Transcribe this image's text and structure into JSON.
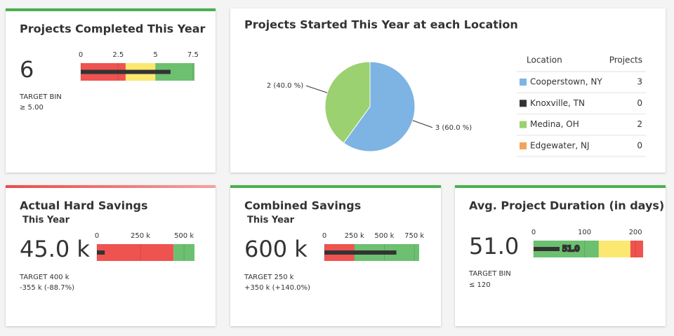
{
  "kpis": [
    {
      "title": "Projects Completed This Year",
      "value": 6,
      "target_label": "TARGET BIN",
      "target_text": "≥ 5.00",
      "target_color": "#3d9a3d",
      "accent": "#4caf50",
      "bullet": {
        "xlim": [
          0,
          7.6
        ],
        "xticks": [
          0,
          2.5,
          5,
          7.5
        ],
        "bands": [
          {
            "from": 0,
            "to": 3,
            "color": "#ef5350"
          },
          {
            "from": 3,
            "to": 5,
            "color": "#fbe870"
          },
          {
            "from": 5,
            "to": 7.6,
            "color": "#6cc070"
          }
        ],
        "bar_color": "#333333"
      }
    },
    {
      "title": "Actual Hard Savings",
      "subtitle": "This Year",
      "value": 45000,
      "value_label": "45.0 k",
      "target_label": "TARGET 400 k",
      "target_text": "-355 k (-88.7%)",
      "target_color": "#e04a4a",
      "accent": "#e84c4c",
      "bullet": {
        "xlim": [
          0,
          560000
        ],
        "xticks": [
          0,
          {
            "value": 250000,
            "label": "250 k"
          },
          {
            "value": 500000,
            "label": "500 k"
          }
        ],
        "bands": [
          {
            "from": 0,
            "to": 440000,
            "color": "#ef5350"
          },
          {
            "from": 440000,
            "to": 560000,
            "color": "#6cc070"
          }
        ],
        "bar_color": "#333333"
      }
    },
    {
      "title": "Combined Savings",
      "subtitle": "This Year",
      "value": 600000,
      "value_label": "600 k",
      "target_label": "TARGET 250 k",
      "target_text": "+350 k (+140.0%)",
      "target_color": "#3d9a3d",
      "accent": "#4caf50",
      "bullet": {
        "xlim": [
          0,
          790000
        ],
        "xticks": [
          0,
          {
            "value": 250000,
            "label": "250 k"
          },
          {
            "value": 500000,
            "label": "500 k"
          },
          {
            "value": 750000,
            "label": "750 k"
          }
        ],
        "bands": [
          {
            "from": 0,
            "to": 250000,
            "color": "#ef5350"
          },
          {
            "from": 250000,
            "to": 790000,
            "color": "#6cc070"
          }
        ],
        "bar_color": "#333333"
      }
    },
    {
      "title": "Avg. Project Duration (in days)",
      "value": 51,
      "value_label": "51.0",
      "target_label": "TARGET BIN",
      "target_text": "≤ 120",
      "target_color": "#3d9a3d",
      "accent": "#4caf50",
      "bullet": {
        "xlim": [
          0,
          215
        ],
        "xticks": [
          0,
          100,
          200
        ],
        "bands": [
          {
            "from": 0,
            "to": 128,
            "color": "#6cc070"
          },
          {
            "from": 128,
            "to": 190,
            "color": "#fbe870"
          },
          {
            "from": 190,
            "to": 215,
            "color": "#ef5350"
          }
        ],
        "bar_color": "#333333"
      }
    }
  ],
  "chart_data": {
    "type": "pie",
    "title": "Projects Started This Year at each Location",
    "categories": [
      "Cooperstown, NY",
      "Knoxville, TN",
      "Medina, OH",
      "Edgewater, NJ"
    ],
    "values": [
      3,
      0,
      2,
      0
    ],
    "value_labels": [
      "3 (60.0 %)",
      null,
      "2 (40.0 %)",
      null
    ],
    "colors": [
      "#7db4e3",
      "#333333",
      "#9bd170",
      "#f4a35a"
    ],
    "table_headers": [
      "Location",
      "Projects"
    ]
  }
}
